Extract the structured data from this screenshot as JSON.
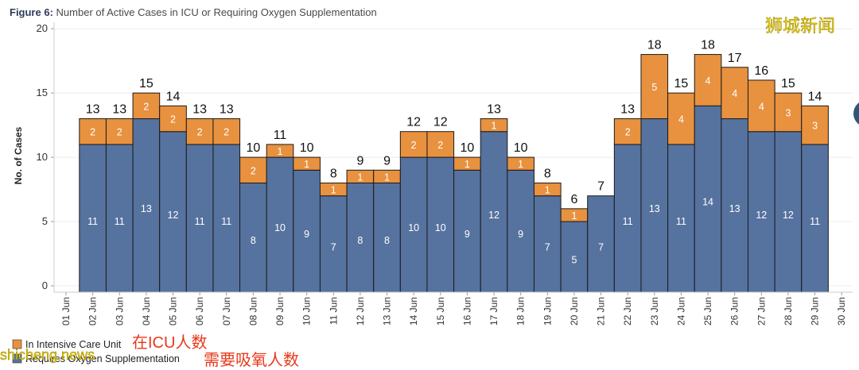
{
  "figure": {
    "label": "Figure 6:",
    "title": "Number of Active Cases in ICU or Requiring Oxygen Supplementation"
  },
  "watermark": {
    "top_right": "狮城新闻",
    "bottom_left": "shicheng.news"
  },
  "overlay_annotations": {
    "icu": "在ICU人数",
    "oxygen": "需要吸氧人数"
  },
  "legend": {
    "items": [
      {
        "label": "In Intensive Care Unit",
        "color": "#e8913f"
      },
      {
        "label": "Requires Oxygen Supplementation",
        "color": "#56729f"
      }
    ]
  },
  "chart_data": {
    "type": "bar",
    "stacked": true,
    "ylabel": "No. of Cases",
    "ylim": [
      0,
      21
    ],
    "yticks": [
      0,
      5,
      10,
      15,
      20
    ],
    "grid": true,
    "categories": [
      "01 Jun",
      "02 Jun",
      "03 Jun",
      "04 Jun",
      "05 Jun",
      "06 Jun",
      "07 Jun",
      "08 Jun",
      "09 Jun",
      "10 Jun",
      "11 Jun",
      "12 Jun",
      "13 Jun",
      "14 Jun",
      "15 Jun",
      "16 Jun",
      "17 Jun",
      "18 Jun",
      "19 Jun",
      "20 Jun",
      "21 Jun",
      "22 Jun",
      "23 Jun",
      "24 Jun",
      "25 Jun",
      "26 Jun",
      "27 Jun",
      "28 Jun",
      "29 Jun",
      "30 Jun"
    ],
    "series": [
      {
        "name": "Requires Oxygen Supplementation",
        "color": "#56729f",
        "values": [
          null,
          11,
          11,
          13,
          12,
          11,
          11,
          8,
          10,
          9,
          7,
          8,
          8,
          10,
          10,
          9,
          12,
          9,
          7,
          5,
          7,
          11,
          13,
          11,
          14,
          13,
          12,
          12,
          11,
          null
        ]
      },
      {
        "name": "In Intensive Care Unit",
        "color": "#e8913f",
        "values": [
          null,
          2,
          2,
          2,
          2,
          2,
          2,
          2,
          1,
          1,
          1,
          1,
          1,
          2,
          2,
          1,
          1,
          1,
          1,
          1,
          0,
          2,
          5,
          4,
          4,
          4,
          4,
          3,
          3,
          null
        ]
      }
    ],
    "totals": [
      null,
      13,
      13,
      15,
      14,
      13,
      13,
      10,
      11,
      10,
      8,
      9,
      9,
      12,
      12,
      10,
      13,
      10,
      8,
      6,
      7,
      13,
      18,
      15,
      18,
      17,
      16,
      15,
      14,
      null
    ]
  }
}
